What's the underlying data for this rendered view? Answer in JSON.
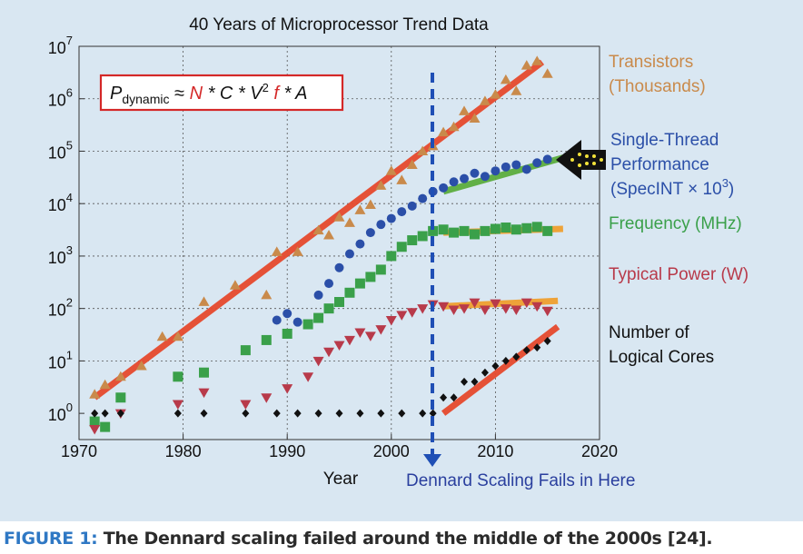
{
  "chart_data": {
    "type": "scatter",
    "title": "40 Years of Microprocessor Trend Data",
    "xlabel": "Year",
    "ylabel": "",
    "xlim": [
      1970,
      2020
    ],
    "ylim_log10": [
      -0.5,
      7
    ],
    "x_ticks": [
      "1970",
      "1980",
      "1990",
      "2000",
      "2010",
      "2020"
    ],
    "y_ticks": [
      {
        "base": "10",
        "exp": "0"
      },
      {
        "base": "10",
        "exp": "1"
      },
      {
        "base": "10",
        "exp": "2"
      },
      {
        "base": "10",
        "exp": "3"
      },
      {
        "base": "10",
        "exp": "4"
      },
      {
        "base": "10",
        "exp": "5"
      },
      {
        "base": "10",
        "exp": "6"
      },
      {
        "base": "10",
        "exp": "7"
      }
    ],
    "formula": {
      "p": "P",
      "sub": "dynamic",
      "approx": " ≈ ",
      "n": "N",
      "s1": " * C * V",
      "sq": "2",
      "f": " f",
      "s2": " * A"
    },
    "annotation": "Dennard Scaling Fails in Here",
    "series": [
      {
        "name": "Transistors (Thousands)",
        "label_lines": [
          "Transistors",
          "(Thousands)"
        ],
        "color": "#c98a4b",
        "marker": "triangle",
        "trend": {
          "x": [
            1971.5,
            2014.5
          ],
          "y": [
            2,
            5000000
          ],
          "color": "#e64a2e"
        },
        "points": [
          [
            1971.5,
            2.3
          ],
          [
            1972.5,
            3.5
          ],
          [
            1974,
            5
          ],
          [
            1976,
            8
          ],
          [
            1978,
            29
          ],
          [
            1979.5,
            29
          ],
          [
            1982,
            134
          ],
          [
            1985,
            275
          ],
          [
            1988,
            180
          ],
          [
            1989,
            1200
          ],
          [
            1991,
            1200
          ],
          [
            1993,
            3100
          ],
          [
            1994,
            2500
          ],
          [
            1995,
            5500
          ],
          [
            1996,
            4300
          ],
          [
            1997,
            7500
          ],
          [
            1998,
            9500
          ],
          [
            1999,
            22000
          ],
          [
            2000,
            42000
          ],
          [
            2001,
            28000
          ],
          [
            2002,
            55000
          ],
          [
            2003,
            100000
          ],
          [
            2004,
            125000
          ],
          [
            2005,
            230000
          ],
          [
            2006,
            290000
          ],
          [
            2007,
            580000
          ],
          [
            2008,
            420000
          ],
          [
            2009,
            900000
          ],
          [
            2010,
            1200000
          ],
          [
            2011,
            2300000
          ],
          [
            2012,
            1400000
          ],
          [
            2013,
            4300000
          ],
          [
            2014,
            5200000
          ],
          [
            2015,
            3000000
          ]
        ]
      },
      {
        "name": "Single-Thread Performance (SpecINT × 10³)",
        "label_lines": [
          "Single-Thread",
          "Performance",
          "(SpecINT × 10"
        ],
        "label_sup": "3",
        "label_close": ")",
        "color": "#2b4fa8",
        "marker": "circle",
        "trend": {
          "x": [
            2005,
            2016.5
          ],
          "y": [
            17000,
            75000
          ],
          "color": "#5cae3e"
        },
        "points": [
          [
            1989,
            60
          ],
          [
            1990,
            80
          ],
          [
            1991,
            55
          ],
          [
            1993,
            180
          ],
          [
            1994,
            300
          ],
          [
            1995,
            600
          ],
          [
            1996,
            1100
          ],
          [
            1997,
            1700
          ],
          [
            1998,
            2800
          ],
          [
            1999,
            4000
          ],
          [
            2000,
            5200
          ],
          [
            2001,
            7000
          ],
          [
            2002,
            9000
          ],
          [
            2003,
            12500
          ],
          [
            2004,
            17000
          ],
          [
            2005,
            20000
          ],
          [
            2006,
            26000
          ],
          [
            2007,
            30000
          ],
          [
            2008,
            38000
          ],
          [
            2009,
            33000
          ],
          [
            2010,
            42000
          ],
          [
            2011,
            50000
          ],
          [
            2012,
            55000
          ],
          [
            2013,
            45000
          ],
          [
            2014,
            60000
          ],
          [
            2015,
            70000
          ]
        ]
      },
      {
        "name": "Frequency (MHz)",
        "label_lines": [
          "Frequency (MHz)"
        ],
        "color": "#3aa04a",
        "marker": "square",
        "trend": {
          "x": [
            2005,
            2016.5
          ],
          "y": [
            2800,
            3300
          ],
          "color": "#f0a030"
        },
        "points": [
          [
            1971.5,
            0.7
          ],
          [
            1972.5,
            0.55
          ],
          [
            1974,
            2
          ],
          [
            1979.5,
            5
          ],
          [
            1982,
            6
          ],
          [
            1986,
            16
          ],
          [
            1988,
            25
          ],
          [
            1990,
            33
          ],
          [
            1992,
            50
          ],
          [
            1993,
            66
          ],
          [
            1994,
            100
          ],
          [
            1995,
            133
          ],
          [
            1996,
            200
          ],
          [
            1997,
            300
          ],
          [
            1998,
            400
          ],
          [
            1999,
            550
          ],
          [
            2000,
            1000
          ],
          [
            2001,
            1500
          ],
          [
            2002,
            2000
          ],
          [
            2003,
            2400
          ],
          [
            2004,
            3000
          ],
          [
            2005,
            3200
          ],
          [
            2006,
            2800
          ],
          [
            2007,
            3000
          ],
          [
            2008,
            2600
          ],
          [
            2009,
            3000
          ],
          [
            2010,
            3300
          ],
          [
            2011,
            3500
          ],
          [
            2012,
            3200
          ],
          [
            2013,
            3400
          ],
          [
            2014,
            3600
          ],
          [
            2015,
            3000
          ]
        ]
      },
      {
        "name": "Typical Power (W)",
        "label_lines": [
          "Typical Power (W)"
        ],
        "color": "#b83a4a",
        "marker": "triangle-down",
        "trend": {
          "x": [
            2005,
            2016
          ],
          "y": [
            110,
            140
          ],
          "color": "#f0a030"
        },
        "points": [
          [
            1971.5,
            0.5
          ],
          [
            1974,
            1
          ],
          [
            1979.5,
            1.5
          ],
          [
            1982,
            2.5
          ],
          [
            1986,
            1.5
          ],
          [
            1988,
            2
          ],
          [
            1990,
            3
          ],
          [
            1992,
            5
          ],
          [
            1993,
            10
          ],
          [
            1994,
            15
          ],
          [
            1995,
            20
          ],
          [
            1996,
            25
          ],
          [
            1997,
            35
          ],
          [
            1998,
            30
          ],
          [
            1999,
            40
          ],
          [
            2000,
            60
          ],
          [
            2001,
            75
          ],
          [
            2002,
            85
          ],
          [
            2003,
            100
          ],
          [
            2004,
            120
          ],
          [
            2005,
            110
          ],
          [
            2006,
            95
          ],
          [
            2007,
            100
          ],
          [
            2008,
            130
          ],
          [
            2009,
            95
          ],
          [
            2010,
            125
          ],
          [
            2011,
            100
          ],
          [
            2012,
            95
          ],
          [
            2013,
            130
          ],
          [
            2014,
            110
          ],
          [
            2015,
            90
          ]
        ]
      },
      {
        "name": "Number of Logical Cores",
        "label_lines": [
          "Number of",
          "Logical Cores"
        ],
        "color": "#111111",
        "marker": "diamond",
        "trend": {
          "x": [
            2005,
            2016
          ],
          "y": [
            1,
            45
          ],
          "color": "#e64a2e"
        },
        "points": [
          [
            1971.5,
            1
          ],
          [
            1972.5,
            1
          ],
          [
            1974,
            1
          ],
          [
            1979.5,
            1
          ],
          [
            1982,
            1
          ],
          [
            1986,
            1
          ],
          [
            1989,
            1
          ],
          [
            1991,
            1
          ],
          [
            1993,
            1
          ],
          [
            1995,
            1
          ],
          [
            1997,
            1
          ],
          [
            1999,
            1
          ],
          [
            2001,
            1
          ],
          [
            2003,
            1
          ],
          [
            2004,
            1
          ],
          [
            2005,
            2
          ],
          [
            2006,
            2
          ],
          [
            2007,
            4
          ],
          [
            2008,
            4
          ],
          [
            2009,
            6
          ],
          [
            2010,
            8
          ],
          [
            2011,
            10
          ],
          [
            2012,
            12
          ],
          [
            2013,
            16
          ],
          [
            2014,
            18
          ],
          [
            2015,
            24
          ]
        ]
      }
    ]
  },
  "caption": {
    "label": "FIGURE 1:",
    "text": " The Dennard scaling failed around the middle of the 2000s [24]."
  }
}
